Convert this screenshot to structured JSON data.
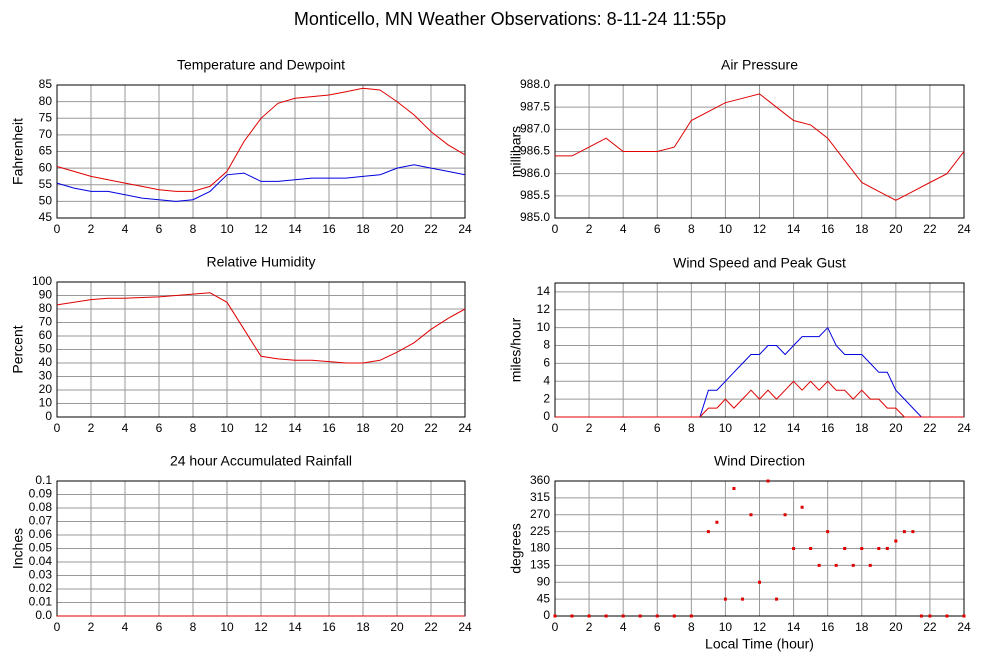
{
  "title": "Monticello, MN Weather Observations: 8-11-24 11:55p",
  "chart_data": [
    {
      "type": "line",
      "title": "Temperature and Dewpoint",
      "ylabel": "Fahrenheit",
      "x": [
        0,
        1,
        2,
        3,
        4,
        5,
        6,
        7,
        8,
        9,
        10,
        11,
        12,
        13,
        14,
        15,
        16,
        17,
        18,
        19,
        20,
        21,
        22,
        23,
        24
      ],
      "series": [
        {
          "color": "#e00000",
          "values": [
            60.5,
            59,
            57.5,
            56.5,
            55.5,
            54.5,
            53.5,
            53,
            53,
            54.5,
            59,
            68,
            75,
            79.5,
            81,
            81.5,
            82,
            83,
            84,
            83.5,
            80,
            76,
            71,
            67,
            64
          ]
        },
        {
          "color": "#0000e0",
          "values": [
            55.5,
            54,
            53,
            53,
            52,
            51,
            50.5,
            50,
            50.5,
            53,
            58,
            58.5,
            56,
            56,
            56.5,
            57,
            57,
            57,
            57.5,
            58,
            60,
            61,
            60,
            59,
            58
          ]
        }
      ],
      "xlim": [
        0,
        24
      ],
      "xticks": [
        0,
        2,
        4,
        6,
        8,
        10,
        12,
        14,
        16,
        18,
        20,
        22,
        24
      ],
      "ylim": [
        45,
        85
      ],
      "yticks": [
        45,
        50,
        55,
        60,
        65,
        70,
        75,
        80,
        85
      ],
      "grid": true
    },
    {
      "type": "line",
      "title": "Air Pressure",
      "ylabel": "millibars",
      "x": [
        0,
        1,
        2,
        3,
        4,
        5,
        6,
        7,
        8,
        9,
        10,
        11,
        12,
        13,
        14,
        15,
        16,
        17,
        18,
        19,
        20,
        21,
        22,
        23,
        24
      ],
      "series": [
        {
          "color": "#e00000",
          "values": [
            986.4,
            986.4,
            986.6,
            986.8,
            986.5,
            986.5,
            986.5,
            986.6,
            987.2,
            987.4,
            987.6,
            987.7,
            987.8,
            987.5,
            987.2,
            987.1,
            986.8,
            986.3,
            985.8,
            985.6,
            985.4,
            985.6,
            985.8,
            986.0,
            986.5
          ]
        }
      ],
      "xlim": [
        0,
        24
      ],
      "xticks": [
        0,
        2,
        4,
        6,
        8,
        10,
        12,
        14,
        16,
        18,
        20,
        22,
        24
      ],
      "ylim": [
        985,
        988
      ],
      "yticks": [
        {
          "value": 985,
          "label": "985.0"
        },
        985.5,
        {
          "value": 986,
          "label": "986.0"
        },
        986.5,
        {
          "value": 987,
          "label": "987.0"
        },
        987.5,
        {
          "value": 988,
          "label": "988.0"
        }
      ],
      "grid": true
    },
    {
      "type": "line",
      "title": "Relative Humidity",
      "ylabel": "Percent",
      "x": [
        0,
        1,
        2,
        3,
        4,
        5,
        6,
        7,
        8,
        9,
        10,
        11,
        12,
        13,
        14,
        15,
        16,
        17,
        18,
        19,
        20,
        21,
        22,
        23,
        24
      ],
      "series": [
        {
          "color": "#e00000",
          "values": [
            83,
            85,
            87,
            88,
            88,
            88.5,
            89,
            90,
            91,
            92,
            85,
            65,
            45,
            43,
            42,
            42,
            41,
            40,
            40,
            42,
            48,
            55,
            65,
            73,
            80
          ]
        }
      ],
      "xlim": [
        0,
        24
      ],
      "xticks": [
        0,
        2,
        4,
        6,
        8,
        10,
        12,
        14,
        16,
        18,
        20,
        22,
        24
      ],
      "ylim": [
        0,
        100
      ],
      "yticks": [
        0,
        10,
        20,
        30,
        40,
        50,
        60,
        70,
        80,
        90,
        100
      ],
      "grid": true
    },
    {
      "type": "line",
      "title": "Wind Speed and Peak Gust",
      "ylabel": "miles/hour",
      "x": [
        0,
        0.5,
        1,
        1.5,
        2,
        2.5,
        3,
        3.5,
        4,
        4.5,
        5,
        5.5,
        6,
        6.5,
        7,
        7.5,
        8,
        8.5,
        9,
        9.5,
        10,
        10.5,
        11,
        11.5,
        12,
        12.5,
        13,
        13.5,
        14,
        14.5,
        15,
        15.5,
        16,
        16.5,
        17,
        17.5,
        18,
        18.5,
        19,
        19.5,
        20,
        20.5,
        21,
        21.5,
        22,
        22.5,
        23,
        23.5,
        24
      ],
      "series": [
        {
          "color": "#0000e0",
          "values": [
            0,
            0,
            0,
            0,
            0,
            0,
            0,
            0,
            0,
            0,
            0,
            0,
            0,
            0,
            0,
            0,
            0,
            0,
            3,
            3,
            4,
            5,
            6,
            7,
            7,
            8,
            8,
            7,
            8,
            9,
            9,
            9,
            10,
            8,
            7,
            7,
            7,
            6,
            5,
            5,
            3,
            2,
            1,
            0,
            0,
            0,
            0,
            0,
            0
          ]
        },
        {
          "color": "#e00000",
          "values": [
            0,
            0,
            0,
            0,
            0,
            0,
            0,
            0,
            0,
            0,
            0,
            0,
            0,
            0,
            0,
            0,
            0,
            0,
            1,
            1,
            2,
            1,
            2,
            3,
            2,
            3,
            2,
            3,
            4,
            3,
            4,
            3,
            4,
            3,
            3,
            2,
            3,
            2,
            2,
            1,
            1,
            0,
            0,
            0,
            0,
            0,
            0,
            0,
            0
          ]
        }
      ],
      "xlim": [
        0,
        24
      ],
      "xticks": [
        0,
        2,
        4,
        6,
        8,
        10,
        12,
        14,
        16,
        18,
        20,
        22,
        24
      ],
      "ylim": [
        0,
        15
      ],
      "yticks": [
        0,
        2,
        4,
        6,
        8,
        10,
        12,
        14
      ],
      "grid": true
    },
    {
      "type": "line",
      "title": "24 hour Accumulated Rainfall",
      "ylabel": "Inches",
      "x": [
        0,
        24
      ],
      "series": [
        {
          "color": "#e00000",
          "values": [
            0,
            0
          ]
        }
      ],
      "xlim": [
        0,
        24
      ],
      "xticks": [
        0,
        2,
        4,
        6,
        8,
        10,
        12,
        14,
        16,
        18,
        20,
        22,
        24
      ],
      "ylim": [
        0,
        0.1
      ],
      "yticks": [
        {
          "value": 0,
          "label": "0.0"
        },
        0.01,
        0.02,
        0.03,
        0.04,
        0.05,
        0.06,
        0.07,
        0.08,
        0.09,
        0.1
      ],
      "grid": true
    },
    {
      "type": "scatter",
      "title": "Wind Direction",
      "ylabel": "degrees",
      "xlabel": "Local Time (hour)",
      "x": [
        0,
        1,
        2,
        3,
        4,
        5,
        6,
        7,
        8,
        9,
        9.5,
        10,
        10.5,
        11,
        11.5,
        12,
        12.5,
        13,
        13.5,
        14,
        14.5,
        15,
        15.5,
        16,
        16.5,
        17,
        17.5,
        18,
        18.5,
        19,
        19.5,
        20,
        20.5,
        21,
        21.5,
        22,
        23,
        24
      ],
      "series": [
        {
          "color": "#e00000",
          "values": [
            0,
            0,
            0,
            0,
            0,
            0,
            0,
            0,
            0,
            225,
            250,
            45,
            340,
            45,
            270,
            90,
            360,
            45,
            270,
            180,
            290,
            180,
            135,
            225,
            135,
            180,
            135,
            180,
            135,
            180,
            180,
            200,
            225,
            225,
            0,
            0,
            0,
            0
          ]
        }
      ],
      "xlim": [
        0,
        24
      ],
      "xticks": [
        0,
        2,
        4,
        6,
        8,
        10,
        12,
        14,
        16,
        18,
        20,
        22,
        24
      ],
      "ylim": [
        0,
        360
      ],
      "yticks": [
        0,
        45,
        90,
        135,
        180,
        225,
        270,
        315,
        360
      ],
      "grid": true
    }
  ]
}
